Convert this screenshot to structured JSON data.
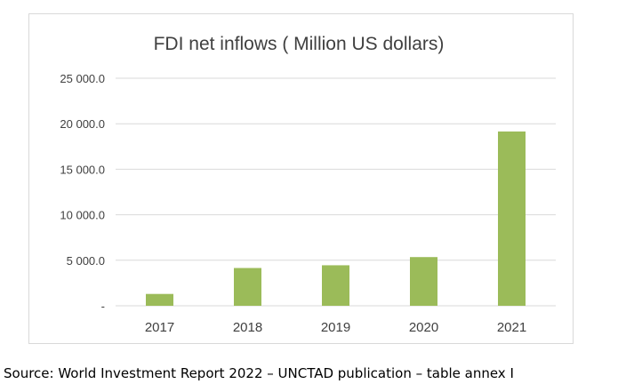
{
  "colors": {
    "bar": "#9bbb59",
    "grid": "#d9d9d9",
    "axis_text": "#404040",
    "title_text": "#404040"
  },
  "chart_data": {
    "type": "bar",
    "title": "FDI net inflows ( Million US dollars)",
    "xlabel": "",
    "ylabel": "",
    "categories": [
      "2017",
      "2018",
      "2019",
      "2020",
      "2021"
    ],
    "values": [
      1300,
      4150,
      4450,
      5350,
      19150
    ],
    "ylim": [
      0,
      25000
    ],
    "y_ticks": [
      0,
      5000,
      10000,
      15000,
      20000,
      25000
    ],
    "y_tick_labels": [
      "-",
      "5 000.0",
      "10 000.0",
      "15 000.0",
      "20 000.0",
      "25 000.0"
    ],
    "grid": true,
    "legend": "none"
  },
  "source_note": "Source: World Investment Report 2022 – UNCTAD publication – table annex I"
}
